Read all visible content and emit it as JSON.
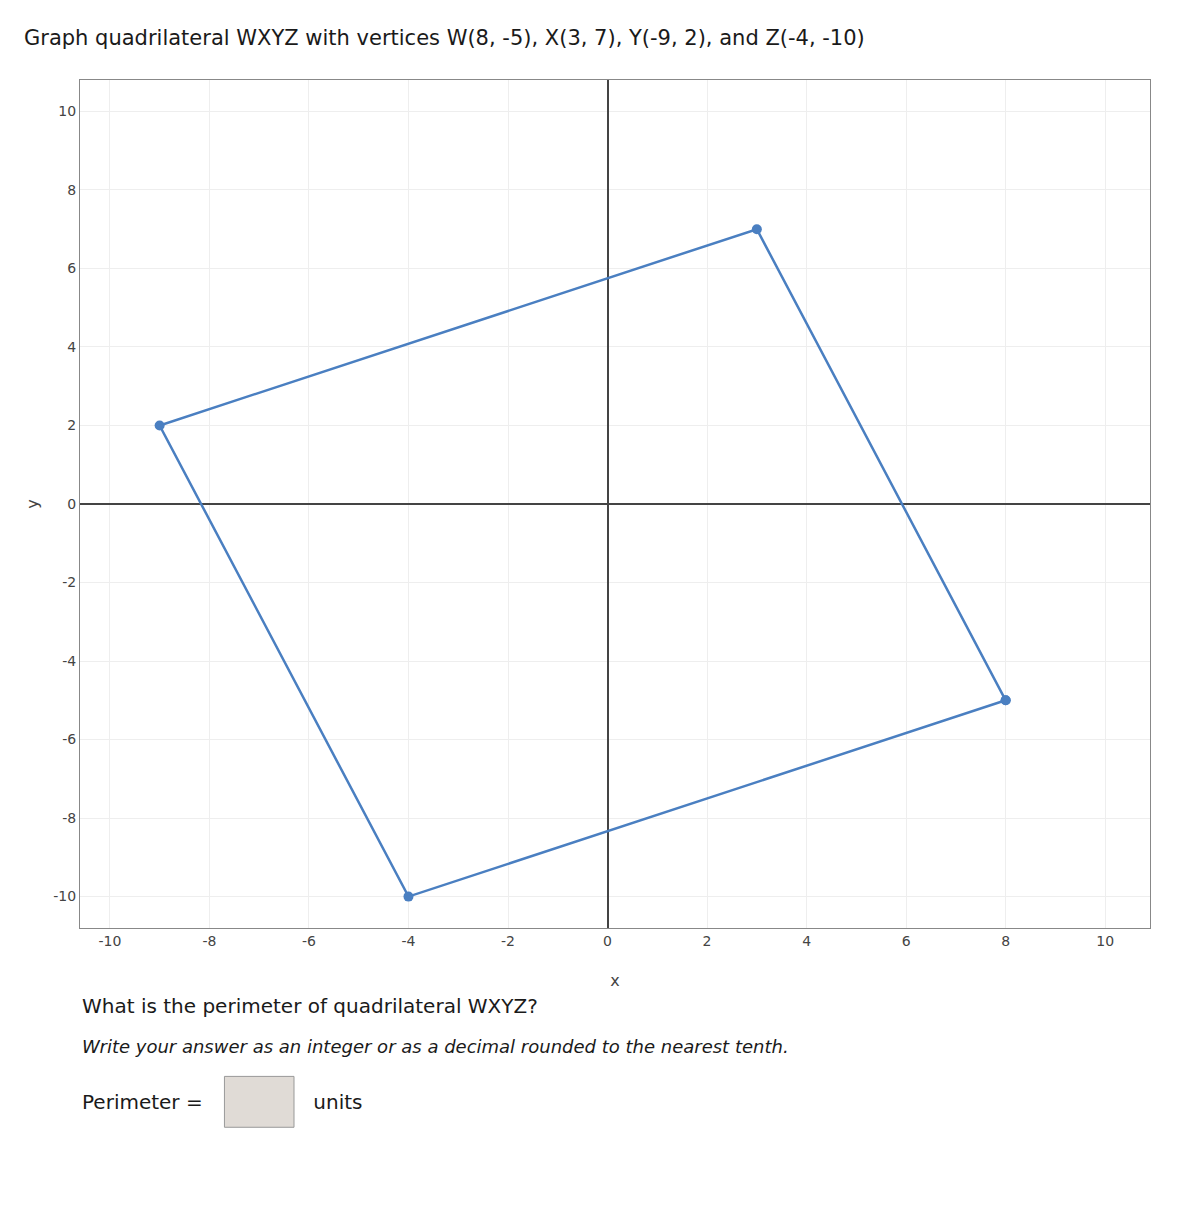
{
  "chart_data": {
    "type": "line",
    "title": "Graph quadrilateral WXYZ with vertices W(8, -5), X(3, 7), Y(-9, 2), and Z(-4, -10)",
    "x": [
      8,
      3,
      -9,
      -4,
      8
    ],
    "values": [
      -5,
      7,
      2,
      -10,
      -5
    ],
    "color": "#4a7fc1",
    "marker": "circle",
    "xlabel": "x",
    "ylabel": "y",
    "xlim": [
      -10.6,
      10.9
    ],
    "ylim": [
      -10.8,
      10.8
    ],
    "xticks": [
      -10,
      -8,
      -6,
      -4,
      -2,
      0,
      2,
      4,
      6,
      8,
      10
    ],
    "yticks": [
      -10,
      -8,
      -6,
      -4,
      -2,
      0,
      2,
      4,
      6,
      8,
      10
    ],
    "grid": true,
    "annotations": [
      "What is the perimeter of quadrilateral WXYZ?",
      "Write your answer as an integer or as a decimal rounded to the nearest tenth.",
      "Perimeter = ",
      " units"
    ]
  }
}
